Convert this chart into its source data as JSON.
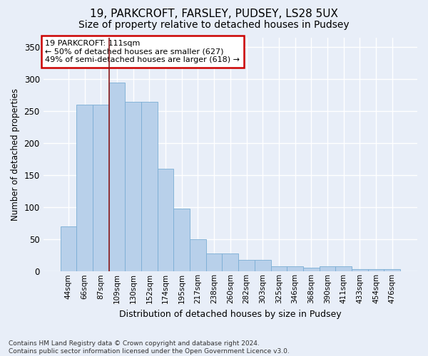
{
  "title1": "19, PARKCROFT, FARSLEY, PUDSEY, LS28 5UX",
  "title2": "Size of property relative to detached houses in Pudsey",
  "xlabel": "Distribution of detached houses by size in Pudsey",
  "ylabel": "Number of detached properties",
  "bar_labels": [
    "44sqm",
    "66sqm",
    "87sqm",
    "109sqm",
    "130sqm",
    "152sqm",
    "174sqm",
    "195sqm",
    "217sqm",
    "238sqm",
    "260sqm",
    "282sqm",
    "303sqm",
    "325sqm",
    "346sqm",
    "368sqm",
    "390sqm",
    "411sqm",
    "433sqm",
    "454sqm",
    "476sqm"
  ],
  "bar_values": [
    70,
    260,
    260,
    295,
    265,
    265,
    160,
    98,
    50,
    28,
    28,
    18,
    18,
    8,
    8,
    6,
    8,
    8,
    4,
    4,
    4
  ],
  "bar_color": "#b8d0ea",
  "bar_edge_color": "#7aadd4",
  "vline_x": 2.5,
  "vline_color": "#8b1a1a",
  "annotation_text": "19 PARKCROFT: 111sqm\n← 50% of detached houses are smaller (627)\n49% of semi-detached houses are larger (618) →",
  "annotation_box_color": "white",
  "annotation_box_edge": "#cc0000",
  "ylim": [
    0,
    365
  ],
  "yticks": [
    0,
    50,
    100,
    150,
    200,
    250,
    300,
    350
  ],
  "footnote": "Contains HM Land Registry data © Crown copyright and database right 2024.\nContains public sector information licensed under the Open Government Licence v3.0.",
  "bg_color": "#e8eef8",
  "grid_color": "white",
  "title1_fontsize": 11,
  "title2_fontsize": 10
}
